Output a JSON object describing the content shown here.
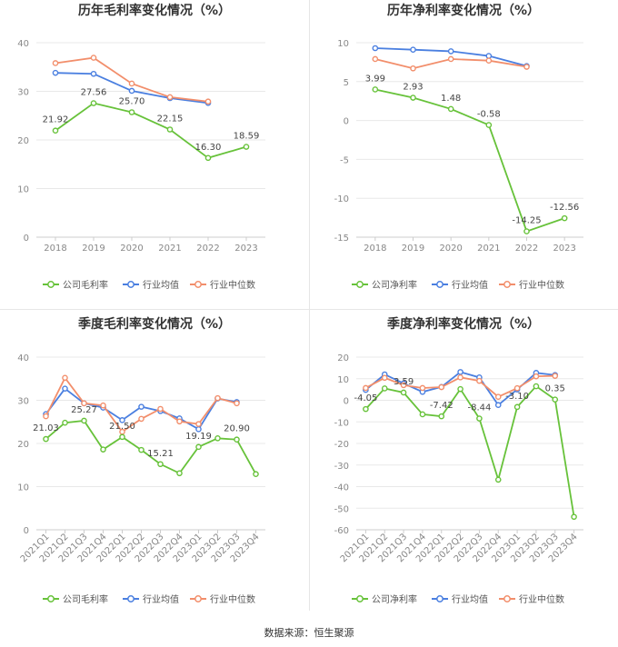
{
  "colors": {
    "company": "#67c23a",
    "industry_avg": "#4a7fe0",
    "industry_median": "#f28e6b",
    "grid": "#e8e8e8",
    "axis_text": "#888888",
    "title": "#333333"
  },
  "legend_labels": {
    "company_gross": "公司毛利率",
    "company_net": "公司净利率",
    "industry_avg": "行业均值",
    "industry_median": "行业中位数"
  },
  "footer": {
    "source": "数据来源：恒生聚源"
  },
  "chart_data": [
    {
      "type": "line",
      "title": "历年毛利率变化情况（%）",
      "categories": [
        "2018",
        "2019",
        "2020",
        "2021",
        "2022",
        "2023"
      ],
      "ylim": [
        0,
        40
      ],
      "yticks": [
        0,
        10,
        20,
        30,
        40
      ],
      "grid": true,
      "legend_position": "bottom",
      "series": [
        {
          "name": "公司毛利率",
          "key": "company",
          "values": [
            21.92,
            27.56,
            25.7,
            22.15,
            16.3,
            18.59
          ],
          "labels": [
            "21.92",
            "27.56",
            "25.70",
            "22.15",
            "16.30",
            "18.59"
          ]
        },
        {
          "name": "行业均值",
          "key": "industry_avg",
          "values": [
            33.8,
            33.6,
            30.1,
            28.6,
            27.6,
            null
          ]
        },
        {
          "name": "行业中位数",
          "key": "industry_median",
          "values": [
            35.8,
            36.9,
            31.6,
            28.8,
            27.9,
            null
          ]
        }
      ]
    },
    {
      "type": "line",
      "title": "历年净利率变化情况（%）",
      "categories": [
        "2018",
        "2019",
        "2020",
        "2021",
        "2022",
        "2023"
      ],
      "ylim": [
        -15,
        10
      ],
      "yticks": [
        -15,
        -10,
        -5,
        0,
        5,
        10
      ],
      "grid": true,
      "legend_position": "bottom",
      "series": [
        {
          "name": "公司净利率",
          "key": "company",
          "values": [
            3.99,
            2.93,
            1.48,
            -0.58,
            -14.25,
            -12.56
          ],
          "labels": [
            "3.99",
            "2.93",
            "1.48",
            "-0.58",
            "-14.25",
            "-12.56"
          ]
        },
        {
          "name": "行业均值",
          "key": "industry_avg",
          "values": [
            9.3,
            9.1,
            8.9,
            8.3,
            7.0,
            null
          ]
        },
        {
          "name": "行业中位数",
          "key": "industry_median",
          "values": [
            7.9,
            6.7,
            7.9,
            7.7,
            6.9,
            null
          ]
        }
      ]
    },
    {
      "type": "line",
      "title": "季度毛利率变化情况（%）",
      "categories": [
        "2021Q1",
        "2021Q2",
        "2021Q3",
        "2021Q4",
        "2022Q1",
        "2022Q2",
        "2022Q3",
        "2022Q4",
        "2023Q1",
        "2023Q2",
        "2023Q3",
        "2023Q4"
      ],
      "ylim": [
        0,
        40
      ],
      "yticks": [
        0,
        10,
        20,
        30,
        40
      ],
      "grid": true,
      "rotate_xlabels": true,
      "legend_position": "bottom",
      "series": [
        {
          "name": "公司毛利率",
          "key": "company",
          "values": [
            21.03,
            24.8,
            25.27,
            18.6,
            21.5,
            18.5,
            15.21,
            13.1,
            19.19,
            21.2,
            20.9,
            12.9
          ],
          "labels": [
            "21.03",
            "",
            "25.27",
            "",
            "21.50",
            "",
            "15.21",
            "",
            "19.19",
            "",
            "20.90",
            ""
          ]
        },
        {
          "name": "行业均值",
          "key": "industry_avg",
          "values": [
            26.8,
            32.7,
            29.3,
            28.3,
            25.4,
            28.5,
            27.5,
            25.8,
            23.3,
            30.4,
            29.6,
            null
          ]
        },
        {
          "name": "行业中位数",
          "key": "industry_median",
          "values": [
            26.3,
            35.2,
            29.3,
            28.8,
            22.7,
            25.7,
            28.0,
            25.1,
            24.5,
            30.5,
            29.3,
            null
          ]
        }
      ]
    },
    {
      "type": "line",
      "title": "季度净利率变化情况（%）",
      "categories": [
        "2021Q1",
        "2021Q2",
        "2021Q3",
        "2021Q4",
        "2022Q1",
        "2022Q2",
        "2022Q3",
        "2022Q4",
        "2023Q1",
        "2023Q2",
        "2023Q3",
        "2023Q4"
      ],
      "ylim": [
        -60,
        20
      ],
      "yticks": [
        -60,
        -50,
        -40,
        -30,
        -20,
        -10,
        0,
        10,
        20
      ],
      "grid": true,
      "rotate_xlabels": true,
      "legend_position": "bottom",
      "series": [
        {
          "name": "公司净利率",
          "key": "company",
          "values": [
            -4.05,
            5.5,
            3.59,
            -6.5,
            -7.42,
            5.2,
            -8.44,
            -36.8,
            -3.1,
            6.5,
            0.35,
            -54.0
          ],
          "labels": [
            "-4.05",
            "",
            "3.59",
            "",
            "-7.42",
            "",
            "-8.44",
            "",
            "-3.10",
            "",
            "0.35",
            ""
          ]
        },
        {
          "name": "行业均值",
          "key": "industry_avg",
          "values": [
            4.8,
            12.0,
            7.8,
            3.9,
            6.2,
            13.1,
            10.6,
            -2.2,
            5.0,
            12.7,
            11.7,
            null
          ]
        },
        {
          "name": "行业中位数",
          "key": "industry_median",
          "values": [
            5.7,
            10.4,
            7.0,
            5.7,
            6.1,
            10.6,
            9.0,
            1.6,
            5.6,
            11.1,
            11.3,
            null
          ]
        }
      ]
    }
  ]
}
